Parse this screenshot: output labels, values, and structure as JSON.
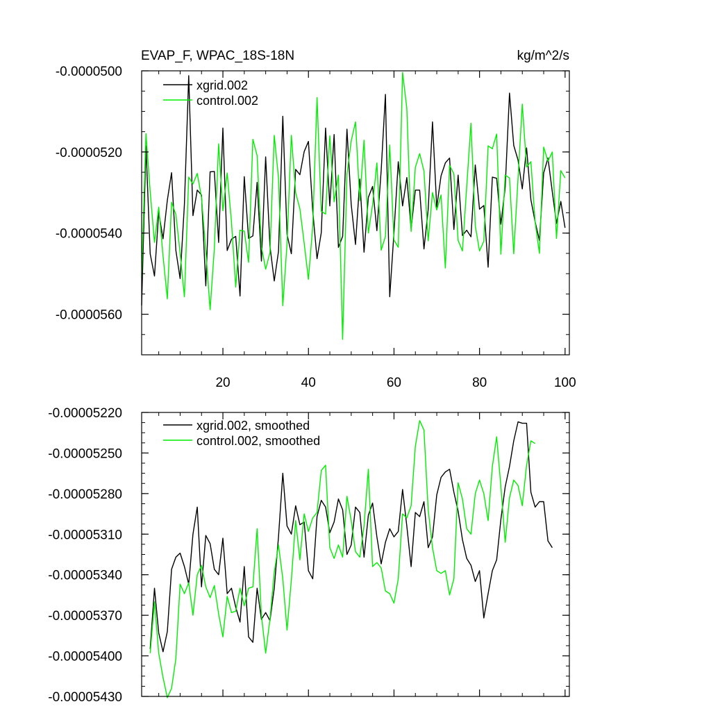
{
  "chart_data": [
    {
      "type": "line",
      "title": "EVAP_F, WPAC_18S-18N",
      "units": "kg/m^2/s",
      "xlim": [
        1,
        101
      ],
      "ylim": [
        -5.7e-05,
        -5e-05
      ],
      "xticks": [
        {
          "value": 20,
          "label": "20"
        },
        {
          "value": 40,
          "label": "40"
        },
        {
          "value": 60,
          "label": "60"
        },
        {
          "value": 80,
          "label": "80"
        },
        {
          "value": 100,
          "label": "100"
        }
      ],
      "yticks": [
        {
          "value": -5e-05,
          "label": "-0.0000500"
        },
        {
          "value": -5.2e-05,
          "label": "-0.0000520"
        },
        {
          "value": -5.4e-05,
          "label": "-0.0000540"
        },
        {
          "value": -5.6e-05,
          "label": "-0.0000560"
        }
      ],
      "legend": "top-left",
      "x_start": 1,
      "series": [
        {
          "name": "xgrid.002",
          "color": "#000000",
          "values": [
            -5.578e-05,
            -5.185e-05,
            -5.451e-05,
            -5.506e-05,
            -5.349e-05,
            -5.414e-05,
            -5.319e-05,
            -5.251e-05,
            -5.443e-05,
            -5.512e-05,
            -5.329e-05,
            -5.012e-05,
            -5.357e-05,
            -5.294e-05,
            -5.306e-05,
            -5.53e-05,
            -5.249e-05,
            -5.248e-05,
            -5.423e-05,
            -5.141e-05,
            -5.443e-05,
            -5.415e-05,
            -5.408e-05,
            -5.555e-05,
            -5.261e-05,
            -5.413e-05,
            -5.407e-05,
            -5.275e-05,
            -5.469e-05,
            -5.212e-05,
            -5.432e-05,
            -5.518e-05,
            -5.445e-05,
            -5.112e-05,
            -5.403e-05,
            -5.451e-05,
            -5.243e-05,
            -5.256e-05,
            -5.199e-05,
            -5.174e-05,
            -5.345e-05,
            -5.463e-05,
            -5.399e-05,
            -5.141e-05,
            -5.333e-05,
            -5.157e-05,
            -5.435e-05,
            -5.408e-05,
            -5.144e-05,
            -5.329e-05,
            -5.428e-05,
            -5.267e-05,
            -5.447e-05,
            -5.312e-05,
            -5.285e-05,
            -5.394e-05,
            -5.245e-05,
            -5.058e-05,
            -5.557e-05,
            -5.399e-05,
            -5.224e-05,
            -5.333e-05,
            -5.263e-05,
            -5.389e-05,
            -5.294e-05,
            -5.294e-05,
            -5.439e-05,
            -5.342e-05,
            -5.126e-05,
            -5.336e-05,
            -5.259e-05,
            -5.227e-05,
            -5.215e-05,
            -5.391e-05,
            -5.257e-05,
            -5.406e-05,
            -5.393e-05,
            -5.409e-05,
            -5.232e-05,
            -5.341e-05,
            -5.332e-05,
            -5.484e-05,
            -5.262e-05,
            -5.265e-05,
            -5.378e-05,
            -5.287e-05,
            -5.055e-05,
            -5.184e-05,
            -5.22e-05,
            -5.291e-05,
            -5.19e-05,
            -5.318e-05,
            -5.372e-05,
            -5.418e-05,
            -5.252e-05,
            -5.215e-05,
            -5.298e-05,
            -5.376e-05,
            -5.322e-05,
            -5.387e-05
          ]
        },
        {
          "name": "control.002",
          "color": "#00ee00",
          "values": [
            -5.51e-05,
            -5.155e-05,
            -5.298e-05,
            -5.423e-05,
            -5.336e-05,
            -5.456e-05,
            -5.562e-05,
            -5.324e-05,
            -5.354e-05,
            -5.449e-05,
            -5.557e-05,
            -5.262e-05,
            -5.279e-05,
            -5.253e-05,
            -5.312e-05,
            -5.443e-05,
            -5.589e-05,
            -5.438e-05,
            -5.18e-05,
            -5.345e-05,
            -5.252e-05,
            -5.373e-05,
            -5.533e-05,
            -5.393e-05,
            -5.395e-05,
            -5.472e-05,
            -5.169e-05,
            -5.209e-05,
            -5.433e-05,
            -5.489e-05,
            -5.448e-05,
            -5.159e-05,
            -5.264e-05,
            -5.579e-05,
            -5.426e-05,
            -5.159e-05,
            -5.3e-05,
            -5.34e-05,
            -5.425e-05,
            -5.514e-05,
            -5.383e-05,
            -5.066e-05,
            -5.346e-05,
            -5.353e-05,
            -5.16e-05,
            -5.323e-05,
            -5.257e-05,
            -5.662e-05,
            -5.255e-05,
            -5.173e-05,
            -5.126e-05,
            -5.32e-05,
            -5.171e-05,
            -5.4e-05,
            -5.33e-05,
            -5.227e-05,
            -5.442e-05,
            -5.408e-05,
            -5.183e-05,
            -5.417e-05,
            -5.435e-05,
            -5.004e-05,
            -5.092e-05,
            -5.396e-05,
            -5.238e-05,
            -5.204e-05,
            -5.247e-05,
            -5.419e-05,
            -5.3e-05,
            -5.343e-05,
            -5.306e-05,
            -5.486e-05,
            -5.233e-05,
            -5.254e-05,
            -5.418e-05,
            -5.444e-05,
            -5.285e-05,
            -5.129e-05,
            -5.382e-05,
            -5.444e-05,
            -5.42e-05,
            -5.185e-05,
            -5.192e-05,
            -5.156e-05,
            -5.452e-05,
            -5.257e-05,
            -5.264e-05,
            -5.451e-05,
            -5.265e-05,
            -5.082e-05,
            -5.237e-05,
            -5.224e-05,
            -5.373e-05,
            -5.45e-05,
            -5.188e-05,
            -5.223e-05,
            -5.2e-05,
            -5.413e-05,
            -5.246e-05,
            -5.264e-05
          ]
        }
      ]
    },
    {
      "type": "line",
      "title": "",
      "units": "",
      "xlim": [
        1,
        101
      ],
      "ylim": [
        -5.43e-05,
        -5.22e-05
      ],
      "xticks": [
        {
          "value": 20,
          "label": ""
        },
        {
          "value": 40,
          "label": ""
        },
        {
          "value": 60,
          "label": ""
        },
        {
          "value": 80,
          "label": ""
        },
        {
          "value": 100,
          "label": ""
        }
      ],
      "yticks": [
        {
          "value": -5.22e-05,
          "label": "-0.00005220"
        },
        {
          "value": -5.25e-05,
          "label": "-0.00005250"
        },
        {
          "value": -5.28e-05,
          "label": "-0.00005280"
        },
        {
          "value": -5.31e-05,
          "label": "-0.00005310"
        },
        {
          "value": -5.34e-05,
          "label": "-0.00005340"
        },
        {
          "value": -5.37e-05,
          "label": "-0.00005370"
        },
        {
          "value": -5.4e-05,
          "label": "-0.00005400"
        },
        {
          "value": -5.43e-05,
          "label": "-0.00005430"
        }
      ],
      "legend": "top-left",
      "x_start": 3,
      "series": [
        {
          "name": "xgrid.002, smoothed",
          "color": "#000000",
          "values": [
            -5.395e-05,
            -5.35e-05,
            -5.383e-05,
            -5.397e-05,
            -5.382e-05,
            -5.336e-05,
            -5.327e-05,
            -5.324e-05,
            -5.334e-05,
            -5.347e-05,
            -5.31e-05,
            -5.29e-05,
            -5.349e-05,
            -5.311e-05,
            -5.317e-05,
            -5.336e-05,
            -5.34e-05,
            -5.313e-05,
            -5.354e-05,
            -5.35e-05,
            -5.364e-05,
            -5.375e-05,
            -5.334e-05,
            -5.386e-05,
            -5.39e-05,
            -5.35e-05,
            -5.373e-05,
            -5.368e-05,
            -5.374e-05,
            -5.35e-05,
            -5.312e-05,
            -5.265e-05,
            -5.304e-05,
            -5.31e-05,
            -5.289e-05,
            -5.303e-05,
            -5.301e-05,
            -5.337e-05,
            -5.343e-05,
            -5.297e-05,
            -5.285e-05,
            -5.29e-05,
            -5.309e-05,
            -5.301e-05,
            -5.284e-05,
            -5.292e-05,
            -5.325e-05,
            -5.318e-05,
            -5.29e-05,
            -5.294e-05,
            -5.327e-05,
            -5.296e-05,
            -5.287e-05,
            -5.312e-05,
            -5.332e-05,
            -5.316e-05,
            -5.306e-05,
            -5.312e-05,
            -5.308e-05,
            -5.277e-05,
            -5.304e-05,
            -5.334e-05,
            -5.294e-05,
            -5.297e-05,
            -5.286e-05,
            -5.32e-05,
            -5.312e-05,
            -5.281e-05,
            -5.268e-05,
            -5.264e-05,
            -5.262e-05,
            -5.279e-05,
            -5.293e-05,
            -5.314e-05,
            -5.328e-05,
            -5.333e-05,
            -5.345e-05,
            -5.337e-05,
            -5.372e-05,
            -5.354e-05,
            -5.337e-05,
            -5.329e-05,
            -5.299e-05,
            -5.275e-05,
            -5.26e-05,
            -5.241e-05,
            -5.227e-05,
            -5.228e-05,
            -5.228e-05,
            -5.279e-05,
            -5.29e-05,
            -5.286e-05,
            -5.286e-05,
            -5.315e-05,
            -5.32e-05
          ]
        },
        {
          "name": "control.002, smoothed",
          "color": "#00ee00",
          "values": [
            -5.398e-05,
            -5.36e-05,
            -5.398e-05,
            -5.416e-05,
            -5.431e-05,
            -5.424e-05,
            -5.402e-05,
            -5.347e-05,
            -5.354e-05,
            -5.346e-05,
            -5.37e-05,
            -5.34e-05,
            -5.333e-05,
            -5.349e-05,
            -5.357e-05,
            -5.348e-05,
            -5.369e-05,
            -5.386e-05,
            -5.356e-05,
            -5.368e-05,
            -5.367e-05,
            -5.35e-05,
            -5.363e-05,
            -5.35e-05,
            -5.349e-05,
            -5.306e-05,
            -5.37e-05,
            -5.398e-05,
            -5.373e-05,
            -5.338e-05,
            -5.318e-05,
            -5.343e-05,
            -5.381e-05,
            -5.344e-05,
            -5.3e-05,
            -5.329e-05,
            -5.295e-05,
            -5.308e-05,
            -5.298e-05,
            -5.294e-05,
            -5.263e-05,
            -5.259e-05,
            -5.32e-05,
            -5.328e-05,
            -5.318e-05,
            -5.327e-05,
            -5.282e-05,
            -5.3e-05,
            -5.323e-05,
            -5.327e-05,
            -5.304e-05,
            -5.262e-05,
            -5.334e-05,
            -5.331e-05,
            -5.335e-05,
            -5.352e-05,
            -5.354e-05,
            -5.361e-05,
            -5.343e-05,
            -5.295e-05,
            -5.298e-05,
            -5.289e-05,
            -5.245e-05,
            -5.226e-05,
            -5.233e-05,
            -5.292e-05,
            -5.32e-05,
            -5.337e-05,
            -5.339e-05,
            -5.337e-05,
            -5.355e-05,
            -5.343e-05,
            -5.272e-05,
            -5.284e-05,
            -5.306e-05,
            -5.31e-05,
            -5.28e-05,
            -5.27e-05,
            -5.28e-05,
            -5.3e-05,
            -5.26e-05,
            -5.238e-05,
            -5.275e-05,
            -5.316e-05,
            -5.283e-05,
            -5.27e-05,
            -5.274e-05,
            -5.289e-05,
            -5.259e-05,
            -5.241e-05,
            -5.243e-05
          ]
        }
      ]
    }
  ]
}
